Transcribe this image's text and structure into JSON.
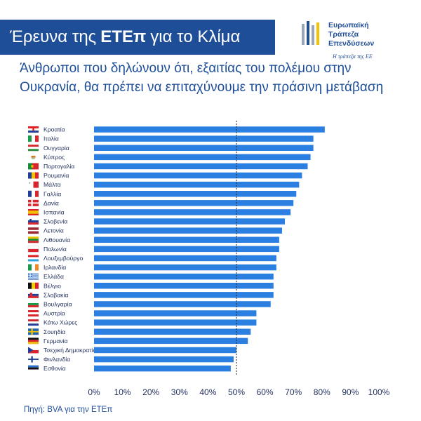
{
  "header": {
    "title_prefix": "Έρευνα της",
    "title_bold": "ΕΤΕπ",
    "title_suffix": "για το Κλίμα"
  },
  "logo": {
    "line1": "Ευρωπαϊκή",
    "line2": "Τράπεζα",
    "line3": "Επενδύσεων",
    "tagline": "Η τράπεζα της ΕΕ"
  },
  "source": "Πηγή: BVA για την ΕΤΕπ",
  "chart_data": {
    "type": "bar",
    "orientation": "horizontal",
    "title": "Άνθρωποι που δηλώνουν ότι, εξαιτίας του πολέμου στην Ουκρανία, θα πρέπει να επιταχύνουμε την πράσινη μετάβαση",
    "categories": [
      "Κροατία",
      "Ιταλία",
      "Ουγγαρία",
      "Κύπρος",
      "Πορτογαλία",
      "Ρουμανία",
      "Μάλτα",
      "Γαλλία",
      "Δανία",
      "Ισπανία",
      "Σλοβενία",
      "Λετονία",
      "Λιθουανία",
      "Πολωνία",
      "Λουξεμβούργο",
      "Ιρλανδία",
      "Ελλάδα",
      "Βέλγιο",
      "Σλοβακία",
      "Βουλγαρία",
      "Αυστρία",
      "Κάτω Χώρες",
      "Σουηδία",
      "Γερμανία",
      "Τσεχική Δημοκρατία",
      "Φινλανδία",
      "Εσθονία"
    ],
    "values": [
      81,
      77,
      77,
      76,
      75,
      73,
      72,
      71,
      70,
      69,
      67,
      66,
      65,
      65,
      64,
      64,
      63,
      63,
      63,
      62,
      57,
      57,
      55,
      54,
      50,
      49,
      48
    ],
    "xlim": [
      0,
      100
    ],
    "xticks": [
      "0%",
      "10%",
      "20%",
      "30%",
      "40%",
      "50%",
      "60%",
      "70%",
      "80%",
      "90%",
      "100%"
    ],
    "reference_line": 50,
    "bar_color": "#2b7fe0",
    "grid": false,
    "flags": [
      "croatia",
      "italy",
      "hungary",
      "cyprus",
      "portugal",
      "romania",
      "malta",
      "france",
      "denmark",
      "spain",
      "slovenia",
      "latvia",
      "lithuania",
      "poland",
      "luxembourg",
      "ireland",
      "greece",
      "belgium",
      "slovakia",
      "bulgaria",
      "austria",
      "netherlands",
      "sweden",
      "germany",
      "czechia",
      "finland",
      "estonia"
    ]
  }
}
